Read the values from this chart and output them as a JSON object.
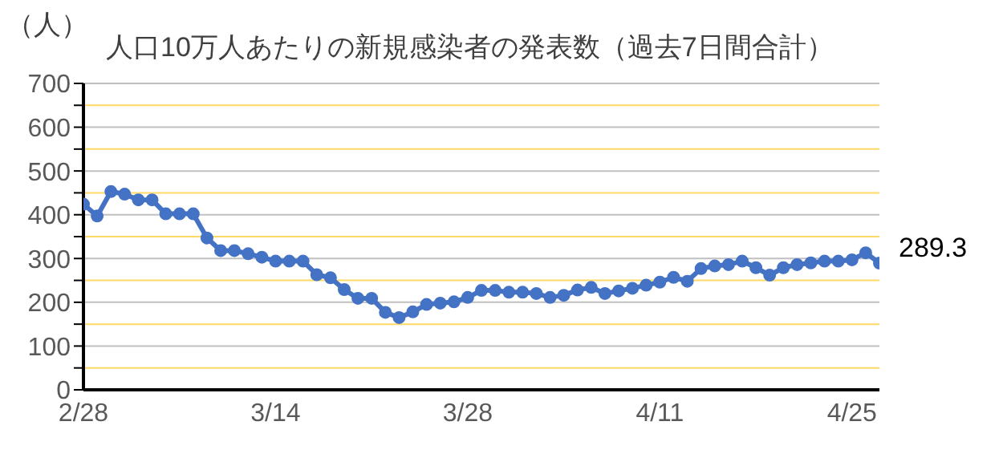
{
  "chart_data": {
    "type": "line",
    "title": "人口10万人あたりの新規感染者の発表数（過去7日間合計）",
    "ylabel": "（人）",
    "categories": [
      "2/28",
      null,
      null,
      null,
      null,
      null,
      null,
      null,
      null,
      null,
      null,
      null,
      null,
      null,
      "3/14",
      null,
      null,
      null,
      null,
      null,
      null,
      null,
      null,
      null,
      null,
      null,
      null,
      null,
      "3/28",
      null,
      null,
      null,
      null,
      null,
      null,
      null,
      null,
      null,
      null,
      null,
      null,
      null,
      "4/11",
      null,
      null,
      null,
      null,
      null,
      null,
      null,
      null,
      null,
      null,
      null,
      null,
      null,
      "4/25",
      null,
      null
    ],
    "series": [
      {
        "color": "#4472c4",
        "values": [
          424,
          397,
          453,
          447,
          434,
          434,
          402,
          402,
          402,
          347,
          318,
          318,
          311,
          303,
          294,
          294,
          294,
          263,
          256,
          229,
          209,
          209,
          177,
          165,
          178,
          195,
          198,
          201,
          211,
          227,
          227,
          223,
          223,
          220,
          211,
          216,
          228,
          234,
          220,
          226,
          232,
          239,
          246,
          257,
          248,
          277,
          283,
          286,
          294,
          279,
          262,
          279,
          286,
          290,
          294,
          294,
          297,
          313,
          289.3
        ],
        "value_labels": [
          null,
          null,
          null,
          null,
          null,
          null,
          null,
          null,
          null,
          null,
          null,
          null,
          null,
          null,
          null,
          null,
          null,
          null,
          null,
          null,
          null,
          null,
          null,
          null,
          null,
          null,
          null,
          null,
          null,
          null,
          null,
          null,
          null,
          null,
          null,
          null,
          null,
          null,
          null,
          null,
          null,
          null,
          null,
          null,
          null,
          null,
          null,
          null,
          null,
          null,
          null,
          null,
          null,
          null,
          null,
          null,
          null,
          null,
          "289.3"
        ]
      }
    ],
    "ylim": [
      0,
      700
    ],
    "yticks": [
      0,
      {
        "value": 50,
        "label": null
      },
      100,
      {
        "value": 150,
        "label": null
      },
      200,
      {
        "value": 250,
        "label": null
      },
      300,
      {
        "value": 350,
        "label": null
      },
      400,
      {
        "value": 450,
        "label": null
      },
      500,
      {
        "value": 550,
        "label": null
      },
      600,
      {
        "value": 650,
        "label": null
      },
      700
    ],
    "grid": "y",
    "marker": "circle",
    "line_style": "solid",
    "legend": false
  }
}
